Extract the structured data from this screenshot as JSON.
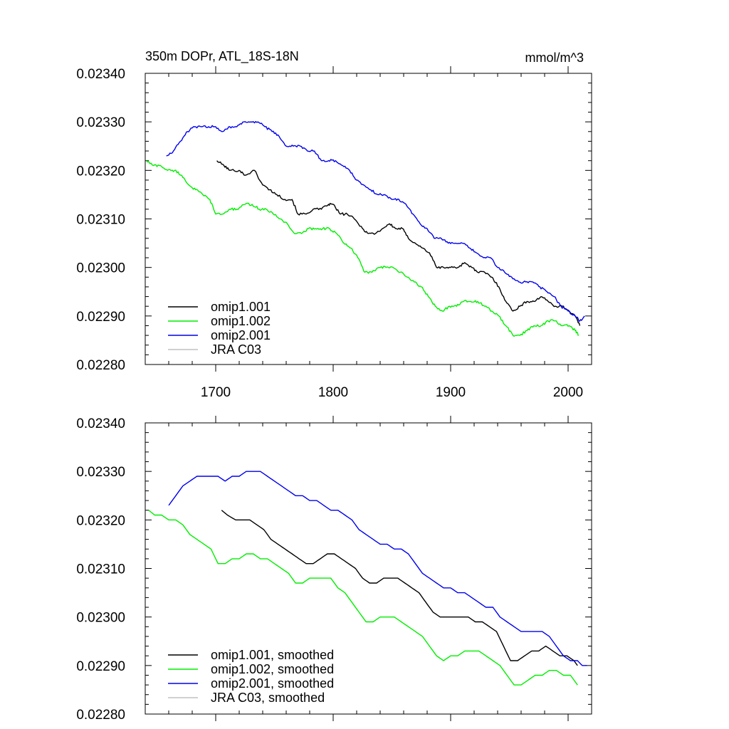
{
  "chart_data": [
    {
      "type": "line",
      "title_left": "350m DOPr, ATL_18S-18N",
      "title_right": "mmol/m^3",
      "xlabel": "",
      "ylabel": "",
      "xlim": [
        1640,
        2020
      ],
      "ylim": [
        0.0228,
        0.0234
      ],
      "x_ticks": [
        1700,
        1800,
        1900,
        2000
      ],
      "x_tick_labels": [
        "1700",
        "1800",
        "1900",
        "2000"
      ],
      "y_ticks": [
        0.0228,
        0.0229,
        0.023,
        0.0231,
        0.0232,
        0.0233,
        0.0234
      ],
      "y_tick_labels": [
        "0.02280",
        "0.02290",
        "0.02300",
        "0.02310",
        "0.02320",
        "0.02330",
        "0.02340"
      ],
      "grid": false,
      "legend_position": "bottom-left",
      "noise": 5e-06,
      "series": [
        {
          "name": "omip1.001",
          "color": "#000000",
          "x": [
            1701,
            1707,
            1712,
            1720,
            1725,
            1733,
            1740,
            1746,
            1752,
            1759,
            1765,
            1770,
            1777,
            1783,
            1790,
            1796,
            1800,
            1806,
            1812,
            1818,
            1825,
            1830,
            1836,
            1842,
            1848,
            1853,
            1859,
            1864,
            1870,
            1876,
            1882,
            1888,
            1894,
            1900,
            1906,
            1912,
            1918,
            1923,
            1929,
            1935,
            1941,
            1947,
            1953,
            1959,
            1965,
            1971,
            1977,
            1983,
            1989,
            1995,
            2001,
            2006,
            2010
          ],
          "y": [
            0.02322,
            0.02321,
            0.0232,
            0.0232,
            0.02319,
            0.0232,
            0.02317,
            0.02316,
            0.02315,
            0.02314,
            0.02314,
            0.02311,
            0.02311,
            0.02312,
            0.02312,
            0.02313,
            0.02313,
            0.02311,
            0.02311,
            0.0231,
            0.02308,
            0.02307,
            0.02307,
            0.02308,
            0.02309,
            0.02308,
            0.02308,
            0.02306,
            0.02305,
            0.02304,
            0.02303,
            0.023,
            0.023,
            0.023,
            0.023,
            0.02301,
            0.023,
            0.02299,
            0.02299,
            0.02298,
            0.02296,
            0.02293,
            0.02291,
            0.02292,
            0.02293,
            0.02293,
            0.02294,
            0.02293,
            0.02292,
            0.02292,
            0.02291,
            0.0229,
            0.02288
          ]
        },
        {
          "name": "omip1.002",
          "color": "#00ee00",
          "x": [
            1641,
            1647,
            1653,
            1659,
            1665,
            1671,
            1677,
            1683,
            1689,
            1695,
            1700,
            1706,
            1712,
            1718,
            1725,
            1731,
            1737,
            1743,
            1749,
            1755,
            1761,
            1767,
            1773,
            1779,
            1785,
            1791,
            1797,
            1803,
            1809,
            1815,
            1821,
            1827,
            1833,
            1839,
            1845,
            1851,
            1857,
            1863,
            1869,
            1875,
            1881,
            1887,
            1893,
            1899,
            1905,
            1911,
            1917,
            1923,
            1929,
            1935,
            1941,
            1947,
            1953,
            1959,
            1965,
            1971,
            1977,
            1983,
            1989,
            1995,
            2001,
            2006,
            2009
          ],
          "y": [
            0.02322,
            0.02321,
            0.02321,
            0.0232,
            0.0232,
            0.02319,
            0.02317,
            0.02316,
            0.02315,
            0.02314,
            0.02311,
            0.02311,
            0.02312,
            0.02312,
            0.02313,
            0.02313,
            0.02312,
            0.02312,
            0.02311,
            0.0231,
            0.02309,
            0.02307,
            0.02307,
            0.02308,
            0.02308,
            0.02308,
            0.02308,
            0.02307,
            0.02305,
            0.02304,
            0.02302,
            0.02299,
            0.02299,
            0.023,
            0.023,
            0.023,
            0.02299,
            0.02298,
            0.02297,
            0.02296,
            0.02294,
            0.02292,
            0.02291,
            0.02292,
            0.02292,
            0.02293,
            0.02293,
            0.02293,
            0.02292,
            0.02291,
            0.0229,
            0.02288,
            0.02286,
            0.02286,
            0.02287,
            0.02288,
            0.02288,
            0.02289,
            0.02289,
            0.02288,
            0.02288,
            0.02287,
            0.02286
          ]
        },
        {
          "name": "omip2.001",
          "color": "#0000ee",
          "x": [
            1658,
            1664,
            1670,
            1676,
            1682,
            1688,
            1694,
            1700,
            1706,
            1712,
            1718,
            1724,
            1730,
            1736,
            1742,
            1748,
            1754,
            1760,
            1766,
            1772,
            1778,
            1784,
            1790,
            1796,
            1802,
            1808,
            1814,
            1820,
            1826,
            1832,
            1838,
            1844,
            1850,
            1856,
            1862,
            1868,
            1874,
            1880,
            1886,
            1892,
            1898,
            1904,
            1910,
            1916,
            1922,
            1928,
            1934,
            1940,
            1946,
            1952,
            1958,
            1964,
            1970,
            1976,
            1982,
            1988,
            1994,
            2000,
            2006,
            2010,
            2014
          ],
          "y": [
            0.02323,
            0.02324,
            0.02326,
            0.02328,
            0.02329,
            0.02329,
            0.02329,
            0.02329,
            0.02328,
            0.02329,
            0.02329,
            0.0233,
            0.0233,
            0.0233,
            0.02329,
            0.02328,
            0.02327,
            0.02325,
            0.02325,
            0.02325,
            0.02324,
            0.02324,
            0.02322,
            0.02322,
            0.02322,
            0.02321,
            0.0232,
            0.02318,
            0.02317,
            0.02316,
            0.02315,
            0.02315,
            0.02314,
            0.02314,
            0.02313,
            0.02311,
            0.02309,
            0.02308,
            0.02306,
            0.02306,
            0.02305,
            0.02305,
            0.02305,
            0.02304,
            0.02303,
            0.02302,
            0.02302,
            0.023,
            0.02299,
            0.02298,
            0.02297,
            0.02297,
            0.02297,
            0.02296,
            0.02295,
            0.02294,
            0.02292,
            0.02291,
            0.0229,
            0.02289,
            0.0229
          ]
        },
        {
          "name": "JRA C03",
          "color": "#c0c0c0",
          "x": [],
          "y": []
        }
      ]
    },
    {
      "type": "line",
      "title_left": "",
      "title_right": "",
      "xlabel": "",
      "ylabel": "",
      "xlim": [
        1640,
        2020
      ],
      "ylim": [
        0.0228,
        0.0234
      ],
      "x_ticks": [
        1700,
        1800,
        1900,
        2000
      ],
      "x_tick_labels": [],
      "y_ticks": [
        0.0228,
        0.0229,
        0.023,
        0.0231,
        0.0232,
        0.0233,
        0.0234
      ],
      "y_tick_labels": [
        "0.02280",
        "0.02290",
        "0.02300",
        "0.02310",
        "0.02320",
        "0.02330",
        "0.02340"
      ],
      "grid": false,
      "legend_position": "bottom-left",
      "noise": 0,
      "series": [
        {
          "name": "omip1.001, smoothed",
          "color": "#000000",
          "x": [
            1705,
            1710,
            1717,
            1723,
            1729,
            1735,
            1741,
            1747,
            1753,
            1759,
            1765,
            1771,
            1777,
            1783,
            1789,
            1795,
            1801,
            1807,
            1813,
            1819,
            1825,
            1831,
            1837,
            1843,
            1849,
            1855,
            1861,
            1867,
            1873,
            1879,
            1885,
            1891,
            1897,
            1903,
            1909,
            1915,
            1921,
            1927,
            1933,
            1939,
            1945,
            1951,
            1957,
            1963,
            1969,
            1975,
            1981,
            1987,
            1993,
            1999,
            2005,
            2008
          ],
          "y": [
            0.02322,
            0.02321,
            0.0232,
            0.0232,
            0.0232,
            0.02319,
            0.02318,
            0.02316,
            0.02315,
            0.02314,
            0.02313,
            0.02312,
            0.02311,
            0.02311,
            0.02312,
            0.02313,
            0.02313,
            0.02312,
            0.02311,
            0.0231,
            0.02308,
            0.02307,
            0.02307,
            0.02308,
            0.02308,
            0.02308,
            0.02307,
            0.02306,
            0.02305,
            0.02303,
            0.02301,
            0.023,
            0.023,
            0.023,
            0.023,
            0.023,
            0.02299,
            0.02299,
            0.02298,
            0.02297,
            0.02294,
            0.02291,
            0.02291,
            0.02292,
            0.02293,
            0.02293,
            0.02294,
            0.02293,
            0.02292,
            0.02292,
            0.02291,
            0.0229
          ]
        },
        {
          "name": "omip1.002, smoothed",
          "color": "#00ee00",
          "x": [
            1643,
            1648,
            1654,
            1660,
            1666,
            1672,
            1678,
            1684,
            1690,
            1696,
            1702,
            1708,
            1714,
            1720,
            1726,
            1732,
            1738,
            1744,
            1750,
            1756,
            1762,
            1768,
            1774,
            1780,
            1786,
            1792,
            1798,
            1804,
            1810,
            1816,
            1822,
            1828,
            1834,
            1840,
            1846,
            1852,
            1858,
            1864,
            1870,
            1876,
            1882,
            1888,
            1894,
            1900,
            1906,
            1912,
            1918,
            1924,
            1930,
            1936,
            1942,
            1948,
            1954,
            1960,
            1966,
            1972,
            1978,
            1984,
            1990,
            1996,
            2002,
            2008
          ],
          "y": [
            0.02322,
            0.02321,
            0.02321,
            0.0232,
            0.0232,
            0.02319,
            0.02317,
            0.02316,
            0.02315,
            0.02314,
            0.02311,
            0.02311,
            0.02312,
            0.02312,
            0.02313,
            0.02313,
            0.02312,
            0.02312,
            0.02311,
            0.0231,
            0.02309,
            0.02307,
            0.02307,
            0.02308,
            0.02308,
            0.02308,
            0.02308,
            0.02306,
            0.02305,
            0.02303,
            0.02301,
            0.02299,
            0.02299,
            0.023,
            0.023,
            0.023,
            0.02299,
            0.02298,
            0.02297,
            0.02296,
            0.02294,
            0.02292,
            0.02291,
            0.02292,
            0.02292,
            0.02293,
            0.02293,
            0.02293,
            0.02292,
            0.02291,
            0.0229,
            0.02288,
            0.02286,
            0.02286,
            0.02287,
            0.02288,
            0.02288,
            0.02289,
            0.02289,
            0.02288,
            0.02288,
            0.02286
          ]
        },
        {
          "name": "omip2.001, smoothed",
          "color": "#0000ee",
          "x": [
            1660,
            1666,
            1672,
            1678,
            1684,
            1690,
            1696,
            1702,
            1708,
            1714,
            1720,
            1726,
            1732,
            1738,
            1744,
            1750,
            1756,
            1762,
            1768,
            1774,
            1780,
            1786,
            1792,
            1798,
            1804,
            1810,
            1816,
            1822,
            1828,
            1834,
            1840,
            1846,
            1852,
            1858,
            1864,
            1870,
            1876,
            1882,
            1888,
            1894,
            1900,
            1906,
            1912,
            1918,
            1924,
            1930,
            1936,
            1942,
            1948,
            1954,
            1960,
            1966,
            1972,
            1978,
            1984,
            1990,
            1996,
            2002,
            2008,
            2012,
            2016
          ],
          "y": [
            0.02323,
            0.02325,
            0.02327,
            0.02328,
            0.02329,
            0.02329,
            0.02329,
            0.02329,
            0.02328,
            0.02329,
            0.02329,
            0.0233,
            0.0233,
            0.0233,
            0.02329,
            0.02328,
            0.02327,
            0.02326,
            0.02325,
            0.02325,
            0.02324,
            0.02324,
            0.02323,
            0.02322,
            0.02322,
            0.02321,
            0.0232,
            0.02318,
            0.02317,
            0.02316,
            0.02315,
            0.02315,
            0.02314,
            0.02314,
            0.02313,
            0.02311,
            0.02309,
            0.02308,
            0.02307,
            0.02306,
            0.02306,
            0.02305,
            0.02305,
            0.02304,
            0.02303,
            0.02302,
            0.02302,
            0.023,
            0.02299,
            0.02298,
            0.02297,
            0.02297,
            0.02297,
            0.02297,
            0.02296,
            0.02294,
            0.02292,
            0.02291,
            0.02291,
            0.0229,
            0.0229
          ]
        },
        {
          "name": "JRA C03, smoothed",
          "color": "#c0c0c0",
          "x": [],
          "y": []
        }
      ]
    }
  ]
}
